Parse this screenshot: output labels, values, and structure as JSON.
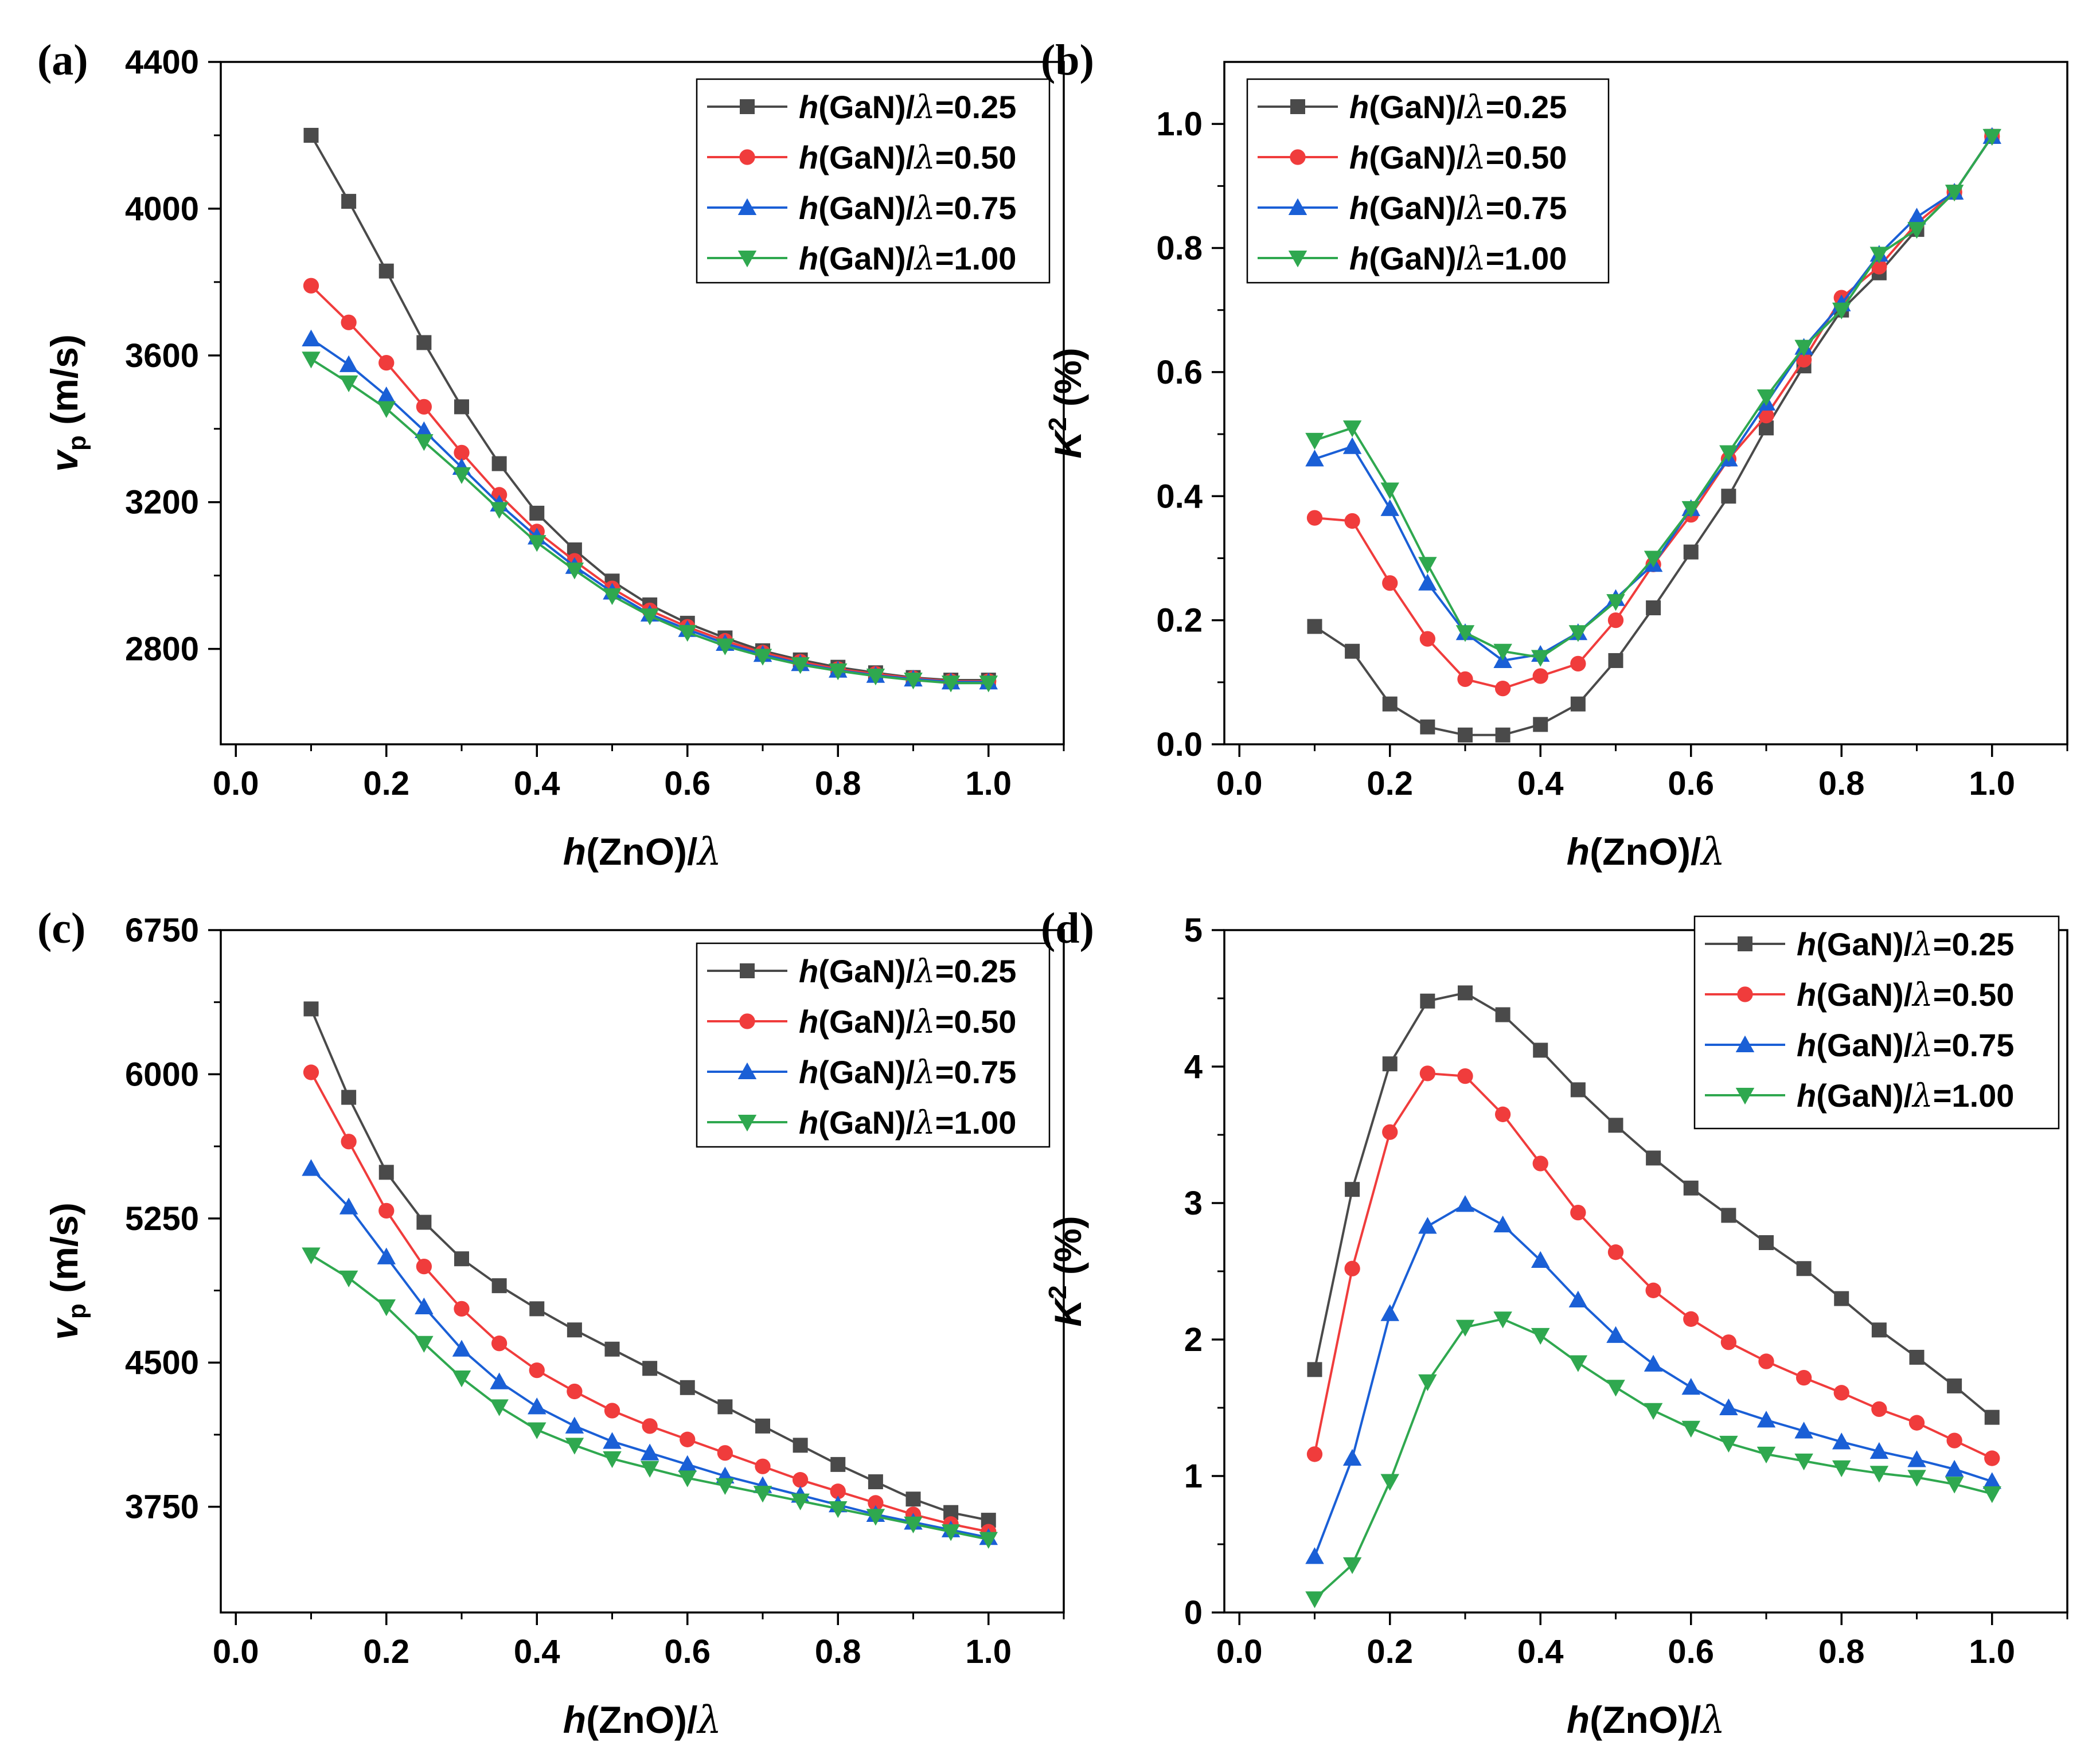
{
  "chart_data": [
    {
      "type": "line",
      "panel_label": "(a)",
      "xlabel": {
        "italic": "h",
        "normal": "(ZnO)/",
        "lambda": "λ"
      },
      "ylabel": {
        "main": "v",
        "sub": "p",
        "unit": " (m/s)"
      },
      "xlim": [
        -0.02,
        1.1
      ],
      "ylim": [
        2540,
        4400
      ],
      "xticks": [
        0.0,
        0.2,
        0.4,
        0.6,
        0.8,
        1.0
      ],
      "xtick_labels": [
        "0.0",
        "0.2",
        "0.4",
        "0.6",
        "0.8",
        "1.0"
      ],
      "yticks": [
        2800,
        3200,
        3600,
        4000,
        4400
      ],
      "ytick_labels": [
        "2800",
        "3200",
        "3600",
        "4000",
        "4400"
      ],
      "legend_position": "top-right",
      "x": [
        0.1,
        0.15,
        0.2,
        0.25,
        0.3,
        0.35,
        0.4,
        0.45,
        0.5,
        0.55,
        0.6,
        0.65,
        0.7,
        0.75,
        0.8,
        0.85,
        0.9,
        0.95,
        1.0
      ],
      "series": [
        {
          "name": "h(GaN)/λ=0.25",
          "label": {
            "italic": "h",
            "normal": "(GaN)/",
            "lambda": "λ",
            "value": "=0.25"
          },
          "color": "#4a4a4a",
          "marker": "square",
          "values": [
            4200,
            4020,
            3830,
            3635,
            3460,
            3305,
            3170,
            3070,
            2985,
            2920,
            2870,
            2830,
            2795,
            2770,
            2750,
            2735,
            2722,
            2715,
            2715
          ]
        },
        {
          "name": "h(GaN)/λ=0.50",
          "label": {
            "italic": "h",
            "normal": "(GaN)/",
            "lambda": "λ",
            "value": "=0.50"
          },
          "color": "#f03c3c",
          "marker": "circle",
          "values": [
            3790,
            3690,
            3580,
            3460,
            3335,
            3220,
            3120,
            3040,
            2965,
            2905,
            2860,
            2822,
            2790,
            2765,
            2745,
            2732,
            2720,
            2712,
            2712
          ]
        },
        {
          "name": "h(GaN)/λ=0.75",
          "label": {
            "italic": "h",
            "normal": "(GaN)/",
            "lambda": "λ",
            "value": "=0.75"
          },
          "color": "#1a5fd6",
          "marker": "triangle-up",
          "values": [
            3645,
            3575,
            3490,
            3395,
            3295,
            3195,
            3105,
            3025,
            2955,
            2895,
            2853,
            2815,
            2785,
            2760,
            2742,
            2728,
            2718,
            2710,
            2710
          ]
        },
        {
          "name": "h(GaN)/λ=1.00",
          "label": {
            "italic": "h",
            "normal": "(GaN)/",
            "lambda": "λ",
            "value": "=1.00"
          },
          "color": "#2fa84f",
          "marker": "triangle-down",
          "values": [
            3590,
            3525,
            3455,
            3365,
            3275,
            3180,
            3090,
            3015,
            2945,
            2890,
            2845,
            2808,
            2780,
            2757,
            2740,
            2726,
            2715,
            2707,
            2707
          ]
        }
      ]
    },
    {
      "type": "line",
      "panel_label": "(b)",
      "xlabel": {
        "italic": "h",
        "normal": "(ZnO)/",
        "lambda": "λ"
      },
      "ylabel": {
        "main": "K",
        "sup": "2",
        "unit": " (%)"
      },
      "xlim": [
        -0.02,
        1.1
      ],
      "ylim": [
        0.0,
        1.1
      ],
      "xticks": [
        0.0,
        0.2,
        0.4,
        0.6,
        0.8,
        1.0
      ],
      "xtick_labels": [
        "0.0",
        "0.2",
        "0.4",
        "0.6",
        "0.8",
        "1.0"
      ],
      "yticks": [
        0.0,
        0.2,
        0.4,
        0.6,
        0.8,
        1.0
      ],
      "ytick_labels": [
        "0.0",
        "0.2",
        "0.4",
        "0.6",
        "0.8",
        "1.0"
      ],
      "legend_position": "top-left",
      "x": [
        0.1,
        0.15,
        0.2,
        0.25,
        0.3,
        0.35,
        0.4,
        0.45,
        0.5,
        0.55,
        0.6,
        0.65,
        0.7,
        0.75,
        0.8,
        0.85,
        0.9,
        0.95,
        1.0
      ],
      "series": [
        {
          "name": "h(GaN)/λ=0.25",
          "label": {
            "italic": "h",
            "normal": "(GaN)/",
            "lambda": "λ",
            "value": "=0.25"
          },
          "color": "#4a4a4a",
          "marker": "square",
          "values": [
            0.19,
            0.15,
            0.065,
            0.028,
            0.015,
            0.015,
            0.032,
            0.065,
            0.135,
            0.22,
            0.31,
            0.4,
            0.51,
            0.61,
            0.7,
            0.76,
            0.83,
            0.89,
            0.98
          ]
        },
        {
          "name": "h(GaN)/λ=0.50",
          "label": {
            "italic": "h",
            "normal": "(GaN)/",
            "lambda": "λ",
            "value": "=0.50"
          },
          "color": "#f03c3c",
          "marker": "circle",
          "values": [
            0.365,
            0.36,
            0.26,
            0.17,
            0.105,
            0.09,
            0.11,
            0.13,
            0.2,
            0.29,
            0.37,
            0.46,
            0.53,
            0.62,
            0.72,
            0.77,
            0.84,
            0.89,
            0.98
          ]
        },
        {
          "name": "h(GaN)/λ=0.75",
          "label": {
            "italic": "h",
            "normal": "(GaN)/",
            "lambda": "λ",
            "value": "=0.75"
          },
          "color": "#1a5fd6",
          "marker": "triangle-up",
          "values": [
            0.46,
            0.48,
            0.38,
            0.26,
            0.18,
            0.135,
            0.145,
            0.18,
            0.235,
            0.29,
            0.38,
            0.46,
            0.55,
            0.64,
            0.71,
            0.79,
            0.85,
            0.89,
            0.98
          ]
        },
        {
          "name": "h(GaN)/λ=1.00",
          "label": {
            "italic": "h",
            "normal": "(GaN)/",
            "lambda": "λ",
            "value": "=1.00"
          },
          "color": "#2fa84f",
          "marker": "triangle-down",
          "values": [
            0.49,
            0.51,
            0.41,
            0.29,
            0.18,
            0.15,
            0.14,
            0.18,
            0.23,
            0.3,
            0.38,
            0.47,
            0.56,
            0.64,
            0.7,
            0.79,
            0.83,
            0.89,
            0.98
          ]
        }
      ]
    },
    {
      "type": "line",
      "panel_label": "(c)",
      "xlabel": {
        "italic": "h",
        "normal": "(ZnO)/",
        "lambda": "λ"
      },
      "ylabel": {
        "main": "v",
        "sub": "p",
        "unit": " (m/s)"
      },
      "xlim": [
        -0.02,
        1.1
      ],
      "ylim": [
        3200,
        6750
      ],
      "xticks": [
        0.0,
        0.2,
        0.4,
        0.6,
        0.8,
        1.0
      ],
      "xtick_labels": [
        "0.0",
        "0.2",
        "0.4",
        "0.6",
        "0.8",
        "1.0"
      ],
      "yticks": [
        3750,
        4500,
        5250,
        6000,
        6750
      ],
      "ytick_labels": [
        "3750",
        "4500",
        "5250",
        "6000",
        "6750"
      ],
      "legend_position": "top-right",
      "x": [
        0.1,
        0.15,
        0.2,
        0.25,
        0.3,
        0.35,
        0.4,
        0.45,
        0.5,
        0.55,
        0.6,
        0.65,
        0.7,
        0.75,
        0.8,
        0.85,
        0.9,
        0.95,
        1.0
      ],
      "series": [
        {
          "name": "h(GaN)/λ=0.25",
          "label": {
            "italic": "h",
            "normal": "(GaN)/",
            "lambda": "λ",
            "value": "=0.25"
          },
          "color": "#4a4a4a",
          "marker": "square",
          "values": [
            6340,
            5880,
            5490,
            5230,
            5040,
            4900,
            4780,
            4670,
            4570,
            4470,
            4370,
            4270,
            4170,
            4070,
            3970,
            3880,
            3790,
            3720,
            3680
          ]
        },
        {
          "name": "h(GaN)/λ=0.50",
          "label": {
            "italic": "h",
            "normal": "(GaN)/",
            "lambda": "λ",
            "value": "=0.50"
          },
          "color": "#f03c3c",
          "marker": "circle",
          "values": [
            6010,
            5650,
            5290,
            5000,
            4780,
            4600,
            4460,
            4350,
            4250,
            4170,
            4100,
            4030,
            3960,
            3890,
            3830,
            3770,
            3710,
            3660,
            3620
          ]
        },
        {
          "name": "h(GaN)/λ=0.75",
          "label": {
            "italic": "h",
            "normal": "(GaN)/",
            "lambda": "λ",
            "value": "=0.75"
          },
          "color": "#1a5fd6",
          "marker": "triangle-up",
          "values": [
            5510,
            5310,
            5050,
            4790,
            4570,
            4400,
            4270,
            4170,
            4090,
            4030,
            3970,
            3910,
            3860,
            3810,
            3760,
            3710,
            3670,
            3630,
            3590
          ]
        },
        {
          "name": "h(GaN)/λ=1.00",
          "label": {
            "italic": "h",
            "normal": "(GaN)/",
            "lambda": "λ",
            "value": "=1.00"
          },
          "color": "#2fa84f",
          "marker": "triangle-down",
          "values": [
            5060,
            4940,
            4790,
            4600,
            4420,
            4270,
            4150,
            4070,
            4000,
            3950,
            3900,
            3860,
            3820,
            3780,
            3740,
            3700,
            3660,
            3620,
            3580
          ]
        }
      ]
    },
    {
      "type": "line",
      "panel_label": "(d)",
      "xlabel": {
        "italic": "h",
        "normal": "(ZnO)/",
        "lambda": "λ"
      },
      "ylabel": {
        "main": "K",
        "sup": "2",
        "unit": " (%)"
      },
      "xlim": [
        -0.02,
        1.1
      ],
      "ylim": [
        0,
        5
      ],
      "xticks": [
        0.0,
        0.2,
        0.4,
        0.6,
        0.8,
        1.0
      ],
      "xtick_labels": [
        "0.0",
        "0.2",
        "0.4",
        "0.6",
        "0.8",
        "1.0"
      ],
      "yticks": [
        0,
        1,
        2,
        3,
        4,
        5
      ],
      "ytick_labels": [
        "0",
        "1",
        "2",
        "3",
        "4",
        "5"
      ],
      "legend_position": "top-right",
      "x": [
        0.1,
        0.15,
        0.2,
        0.25,
        0.3,
        0.35,
        0.4,
        0.45,
        0.5,
        0.55,
        0.6,
        0.65,
        0.7,
        0.75,
        0.8,
        0.85,
        0.9,
        0.95,
        1.0
      ],
      "series": [
        {
          "name": "h(GaN)/λ=0.25",
          "label": {
            "italic": "h",
            "normal": "(GaN)/",
            "lambda": "λ",
            "value": "=0.25"
          },
          "color": "#4a4a4a",
          "marker": "square",
          "values": [
            1.78,
            3.1,
            4.02,
            4.48,
            4.54,
            4.38,
            4.12,
            3.83,
            3.57,
            3.33,
            3.11,
            2.91,
            2.71,
            2.52,
            2.3,
            2.07,
            1.87,
            1.66,
            1.43
          ]
        },
        {
          "name": "h(GaN)/λ=0.50",
          "label": {
            "italic": "h",
            "normal": "(GaN)/",
            "lambda": "λ",
            "value": "=0.50"
          },
          "color": "#f03c3c",
          "marker": "circle",
          "values": [
            1.16,
            2.52,
            3.52,
            3.95,
            3.93,
            3.65,
            3.29,
            2.93,
            2.64,
            2.36,
            2.15,
            1.98,
            1.84,
            1.72,
            1.61,
            1.49,
            1.39,
            1.26,
            1.13
          ]
        },
        {
          "name": "h(GaN)/λ=0.75",
          "label": {
            "italic": "h",
            "normal": "(GaN)/",
            "lambda": "λ",
            "value": "=0.75"
          },
          "color": "#1a5fd6",
          "marker": "triangle-up",
          "values": [
            0.41,
            1.13,
            2.19,
            2.83,
            2.99,
            2.84,
            2.58,
            2.29,
            2.03,
            1.82,
            1.65,
            1.5,
            1.41,
            1.33,
            1.25,
            1.18,
            1.12,
            1.05,
            0.96
          ]
        },
        {
          "name": "h(GaN)/λ=1.00",
          "label": {
            "italic": "h",
            "normal": "(GaN)/",
            "lambda": "λ",
            "value": "=1.00"
          },
          "color": "#2fa84f",
          "marker": "triangle-down",
          "values": [
            0.1,
            0.35,
            0.96,
            1.69,
            2.09,
            2.15,
            2.03,
            1.83,
            1.65,
            1.48,
            1.35,
            1.24,
            1.16,
            1.11,
            1.06,
            1.02,
            0.99,
            0.94,
            0.87
          ]
        }
      ]
    }
  ]
}
